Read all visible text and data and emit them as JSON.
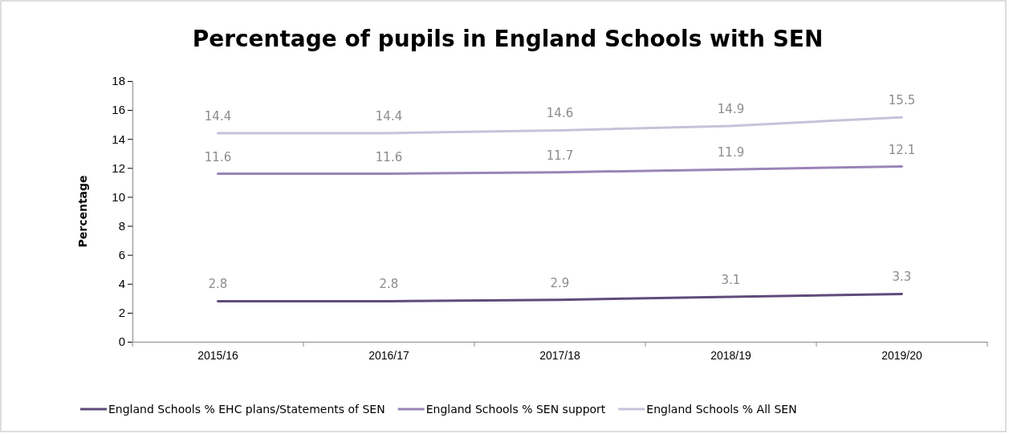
{
  "chart_data": {
    "type": "line",
    "title": "Percentage of pupils in England Schools with SEN",
    "ylabel": "Percentage",
    "categories": [
      "2015/16",
      "2016/17",
      "2017/18",
      "2018/19",
      "2019/20"
    ],
    "series": [
      {
        "name": "England Schools % EHC plans/Statements of SEN",
        "color": "#5f4b7a",
        "values": [
          2.8,
          2.8,
          2.9,
          3.1,
          3.3
        ]
      },
      {
        "name": "England Schools % SEN support",
        "color": "#9a84b8",
        "values": [
          11.6,
          11.6,
          11.7,
          11.9,
          12.1
        ]
      },
      {
        "name": "England Schools % All SEN",
        "color": "#c9c1d9",
        "values": [
          14.4,
          14.4,
          14.6,
          14.9,
          15.5
        ]
      }
    ],
    "ylim": [
      0,
      18
    ],
    "yticks": [
      0,
      2,
      4,
      6,
      8,
      10,
      12,
      14,
      16,
      18
    ],
    "grid": false,
    "legend": "bottom",
    "data_labels": true,
    "marker": "none",
    "line_style": "solid"
  }
}
